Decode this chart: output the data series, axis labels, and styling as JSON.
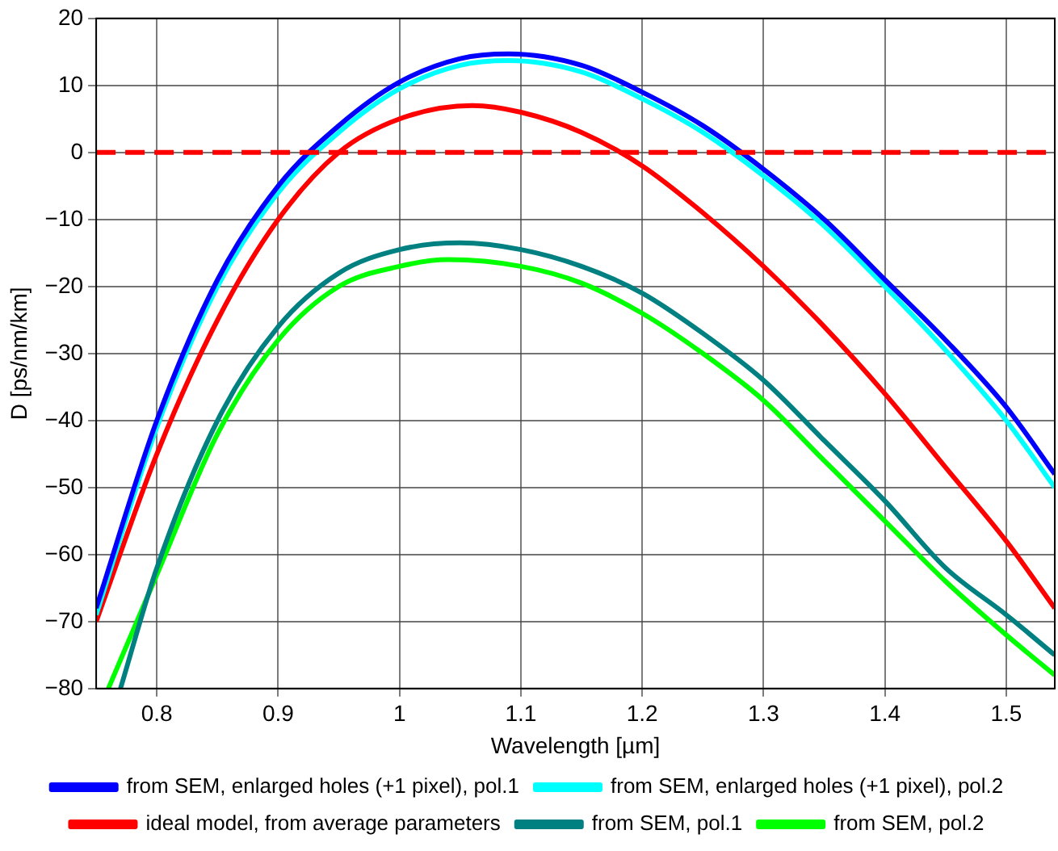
{
  "chart_data": {
    "type": "line",
    "xlabel": "Wavelength [µm]",
    "ylabel": "D [ps/nm/km]",
    "xlim": [
      0.75,
      1.54
    ],
    "xticks": [
      0.8,
      0.9,
      1,
      1.1,
      1.2,
      1.3,
      1.4,
      1.5
    ],
    "ylim": [
      -80,
      20
    ],
    "yticks": [
      {
        "value": -80,
        "label": "−80"
      },
      {
        "value": -70,
        "label": "−70"
      },
      {
        "value": -60,
        "label": "−60"
      },
      {
        "value": -50,
        "label": "−50"
      },
      {
        "value": -40,
        "label": "−40"
      },
      {
        "value": -30,
        "label": "−30"
      },
      {
        "value": -20,
        "label": "−20"
      },
      {
        "value": -10,
        "label": "−10"
      },
      0,
      10,
      20
    ],
    "grid": true,
    "legend": "bottom",
    "marker": "none",
    "line_style": "solid",
    "ref_lines": [
      {
        "axis": "y",
        "value": 0,
        "color": "#ff0000",
        "line_style": "dashed"
      }
    ],
    "series": [
      {
        "name": "from SEM, enlarged holes (+1 pixel), pol.1",
        "color": "#0000ff",
        "x": [
          0.75,
          0.8,
          0.85,
          0.9,
          0.95,
          1.0,
          1.05,
          1.09,
          1.15,
          1.2,
          1.25,
          1.3,
          1.35,
          1.4,
          1.45,
          1.5,
          1.54
        ],
        "values": [
          -68,
          -40,
          -19,
          -5,
          4,
          10.5,
          14,
          14.7,
          13,
          9,
          4,
          -2.5,
          -10,
          -19,
          -28,
          -38,
          -48
        ]
      },
      {
        "name": "from SEM, enlarged holes (+1 pixel), pol.2",
        "color": "#00ffff",
        "x": [
          0.75,
          0.8,
          0.85,
          0.9,
          0.95,
          1.0,
          1.05,
          1.09,
          1.15,
          1.2,
          1.25,
          1.3,
          1.35,
          1.4,
          1.45,
          1.5,
          1.54
        ],
        "values": [
          -69,
          -41,
          -20,
          -6,
          3,
          9.5,
          13,
          13.7,
          12,
          8,
          3,
          -3.5,
          -11,
          -20,
          -29.5,
          -40,
          -50
        ]
      },
      {
        "name": "ideal model, from average parameters",
        "color": "#ff0000",
        "x": [
          0.75,
          0.8,
          0.85,
          0.9,
          0.95,
          1.0,
          1.06,
          1.1,
          1.15,
          1.2,
          1.25,
          1.3,
          1.35,
          1.4,
          1.45,
          1.5,
          1.54
        ],
        "values": [
          -70,
          -45,
          -25,
          -10,
          0,
          5,
          7,
          6,
          3,
          -2,
          -9,
          -17,
          -26,
          -36,
          -47,
          -58,
          -68
        ]
      },
      {
        "name": "from SEM, pol.1",
        "color": "#008080",
        "x": [
          0.77,
          0.8,
          0.85,
          0.9,
          0.95,
          1.0,
          1.05,
          1.1,
          1.15,
          1.2,
          1.25,
          1.3,
          1.35,
          1.4,
          1.45,
          1.5,
          1.54
        ],
        "values": [
          -80,
          -62,
          -40,
          -26,
          -18,
          -14.5,
          -13.5,
          -14.5,
          -17,
          -21,
          -27,
          -34,
          -43,
          -52,
          -62,
          -69,
          -75
        ]
      },
      {
        "name": "from SEM, pol.2",
        "color": "#00ff00",
        "x": [
          0.76,
          0.8,
          0.85,
          0.9,
          0.95,
          1.0,
          1.04,
          1.1,
          1.15,
          1.2,
          1.25,
          1.3,
          1.35,
          1.4,
          1.45,
          1.5,
          1.54
        ],
        "values": [
          -80,
          -63,
          -42,
          -28,
          -20,
          -17,
          -16,
          -17,
          -19.5,
          -24,
          -30,
          -37,
          -46,
          -55,
          -64,
          -72,
          -78
        ]
      }
    ]
  }
}
